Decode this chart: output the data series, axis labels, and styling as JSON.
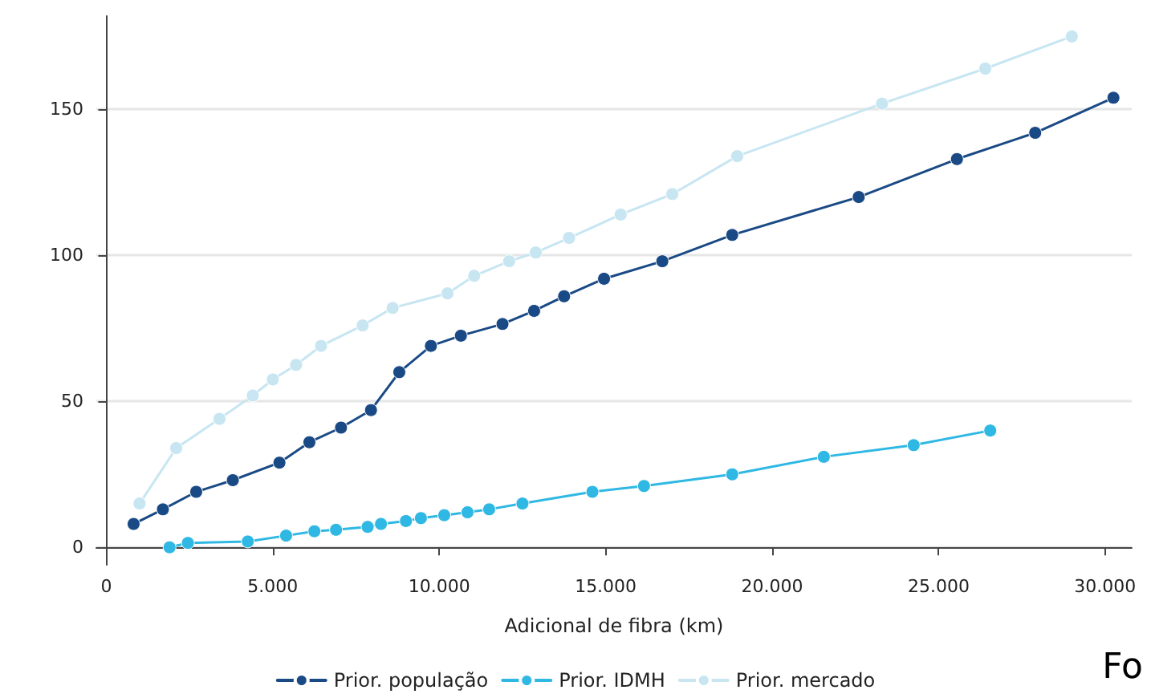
{
  "chart_data": {
    "type": "line",
    "xlabel": "Adicional de fibra (km)",
    "xlim": [
      -300,
      30800
    ],
    "ylim": [
      -6,
      182
    ],
    "xticks": [
      0,
      {
        "value": 5000,
        "label": "5.000"
      },
      {
        "value": 10000,
        "label": "10.000"
      },
      {
        "value": 15000,
        "label": "15.000"
      },
      {
        "value": 20000,
        "label": "20.000"
      },
      {
        "value": 25000,
        "label": "25.000"
      },
      {
        "value": 30000,
        "label": "30.000"
      }
    ],
    "yticks": [
      0,
      50,
      100,
      150
    ],
    "grid": "y",
    "legend": "bottom",
    "marker": "circle",
    "line_style": "solid",
    "annotations": [
      "Fo"
    ],
    "series": [
      {
        "name": "Prior. população",
        "color": "#1a4a85",
        "x": [
          820,
          1700,
          2700,
          3800,
          5200,
          6100,
          7050,
          7950,
          8800,
          9750,
          10650,
          11900,
          12850,
          13750,
          14950,
          16700,
          18800,
          22600,
          25550,
          27900,
          30250
        ],
        "values": [
          8,
          13,
          19,
          23,
          29,
          36,
          41,
          47,
          60,
          69,
          72.5,
          76.5,
          81,
          86,
          92,
          98,
          107,
          120,
          133,
          142,
          154
        ]
      },
      {
        "name": "Prior. IDMH",
        "color": "#2fb8e3",
        "x": [
          1900,
          2450,
          4250,
          5400,
          6250,
          6900,
          7850,
          8250,
          9000,
          9450,
          10150,
          10850,
          11500,
          12500,
          14600,
          16150,
          18800,
          21550,
          24250,
          26550
        ],
        "values": [
          0,
          1.5,
          2,
          4,
          5.5,
          6,
          7,
          8,
          9,
          10,
          11,
          12,
          13,
          15,
          19,
          21,
          25,
          31,
          35,
          40
        ]
      },
      {
        "name": "Prior. mercado",
        "color": "#c7e6f2",
        "x": [
          1000,
          2100,
          3400,
          4400,
          5000,
          5700,
          6450,
          7700,
          8600,
          10250,
          11050,
          12100,
          12900,
          13900,
          15450,
          17000,
          18950,
          23300,
          26400,
          29000
        ],
        "values": [
          15,
          34,
          44,
          52,
          57.5,
          62.5,
          69,
          76,
          82,
          87,
          93,
          98,
          101,
          106,
          114,
          121,
          134,
          152,
          164,
          175
        ]
      }
    ]
  }
}
